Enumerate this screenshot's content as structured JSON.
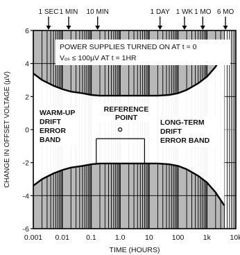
{
  "chart_data": {
    "type": "area",
    "xlabel": "TIME (HOURS)",
    "ylabel": "CHANGE IN OFFSET VOLTAGE (µV)",
    "x_scale": "log",
    "xlim": [
      0.001,
      10000
    ],
    "ylim": [
      -6,
      6
    ],
    "x_ticks": [
      {
        "value": 0.001,
        "label": "0.001"
      },
      {
        "value": 0.01,
        "label": "0.01"
      },
      {
        "value": 0.1,
        "label": "0.1"
      },
      {
        "value": 1,
        "label": "1.0"
      },
      {
        "value": 10,
        "label": "10"
      },
      {
        "value": 100,
        "label": "100"
      },
      {
        "value": 1000,
        "label": "1k"
      },
      {
        "value": 10000,
        "label": "10k"
      }
    ],
    "y_ticks": [
      {
        "value": 6,
        "label": "6"
      },
      {
        "value": 4,
        "label": "4"
      },
      {
        "value": 2,
        "label": "2"
      },
      {
        "value": 0,
        "label": "0"
      },
      {
        "value": -2,
        "label": "-2"
      },
      {
        "value": -4,
        "label": "-4"
      },
      {
        "value": -6,
        "label": "-6"
      }
    ],
    "time_markers": [
      {
        "label": "1 SEC",
        "hours": 0.000278
      },
      {
        "label": "1 MIN",
        "hours": 0.0167
      },
      {
        "label": "10 MIN",
        "hours": 0.167
      },
      {
        "label": "1 DAY",
        "hours": 24
      },
      {
        "label": "1 WK",
        "hours": 168
      },
      {
        "label": "1 MO",
        "hours": 720
      },
      {
        "label": "6 MO",
        "hours": 4380
      }
    ],
    "series": [
      {
        "name": "upper error band",
        "x": [
          0.001,
          0.002,
          0.005,
          0.01,
          0.02,
          0.05,
          0.1,
          0.2,
          0.5,
          1,
          2,
          5,
          10,
          20,
          50,
          100,
          200,
          500,
          1000,
          2000,
          4000
        ],
        "y": [
          3.4,
          3.0,
          2.65,
          2.45,
          2.3,
          2.2,
          2.1,
          2.05,
          2.05,
          2.05,
          2.05,
          2.05,
          2.05,
          2.05,
          2.1,
          2.2,
          2.4,
          2.8,
          3.2,
          3.8,
          4.8
        ]
      },
      {
        "name": "lower error band",
        "x": [
          0.001,
          0.002,
          0.005,
          0.01,
          0.02,
          0.05,
          0.1,
          0.2,
          0.5,
          1,
          2,
          5,
          10,
          20,
          50,
          100,
          200,
          500,
          1000,
          2000,
          4000
        ],
        "y": [
          -3.4,
          -3.0,
          -2.65,
          -2.45,
          -2.3,
          -2.2,
          -2.1,
          -2.05,
          -2.05,
          -2.05,
          -2.05,
          -2.05,
          -2.05,
          -2.05,
          -2.1,
          -2.2,
          -2.4,
          -2.8,
          -3.2,
          -3.8,
          -4.6
        ]
      }
    ],
    "reference_point": {
      "x": 1,
      "y": 0,
      "label": "REFERENCE POINT"
    },
    "annotations": {
      "note_line1": "POWER SUPPLIES TURNED ON AT t = 0",
      "note_line2": "Vₒₛ ≤ 100µV AT t = 1HR",
      "warmup_label": [
        "WARM-UP",
        "DRIFT",
        "ERROR",
        "BAND"
      ],
      "longterm_label": [
        "LONG-TERM",
        "DRIFT",
        "ERROR BAND"
      ]
    },
    "grid": true,
    "legend": "none"
  }
}
